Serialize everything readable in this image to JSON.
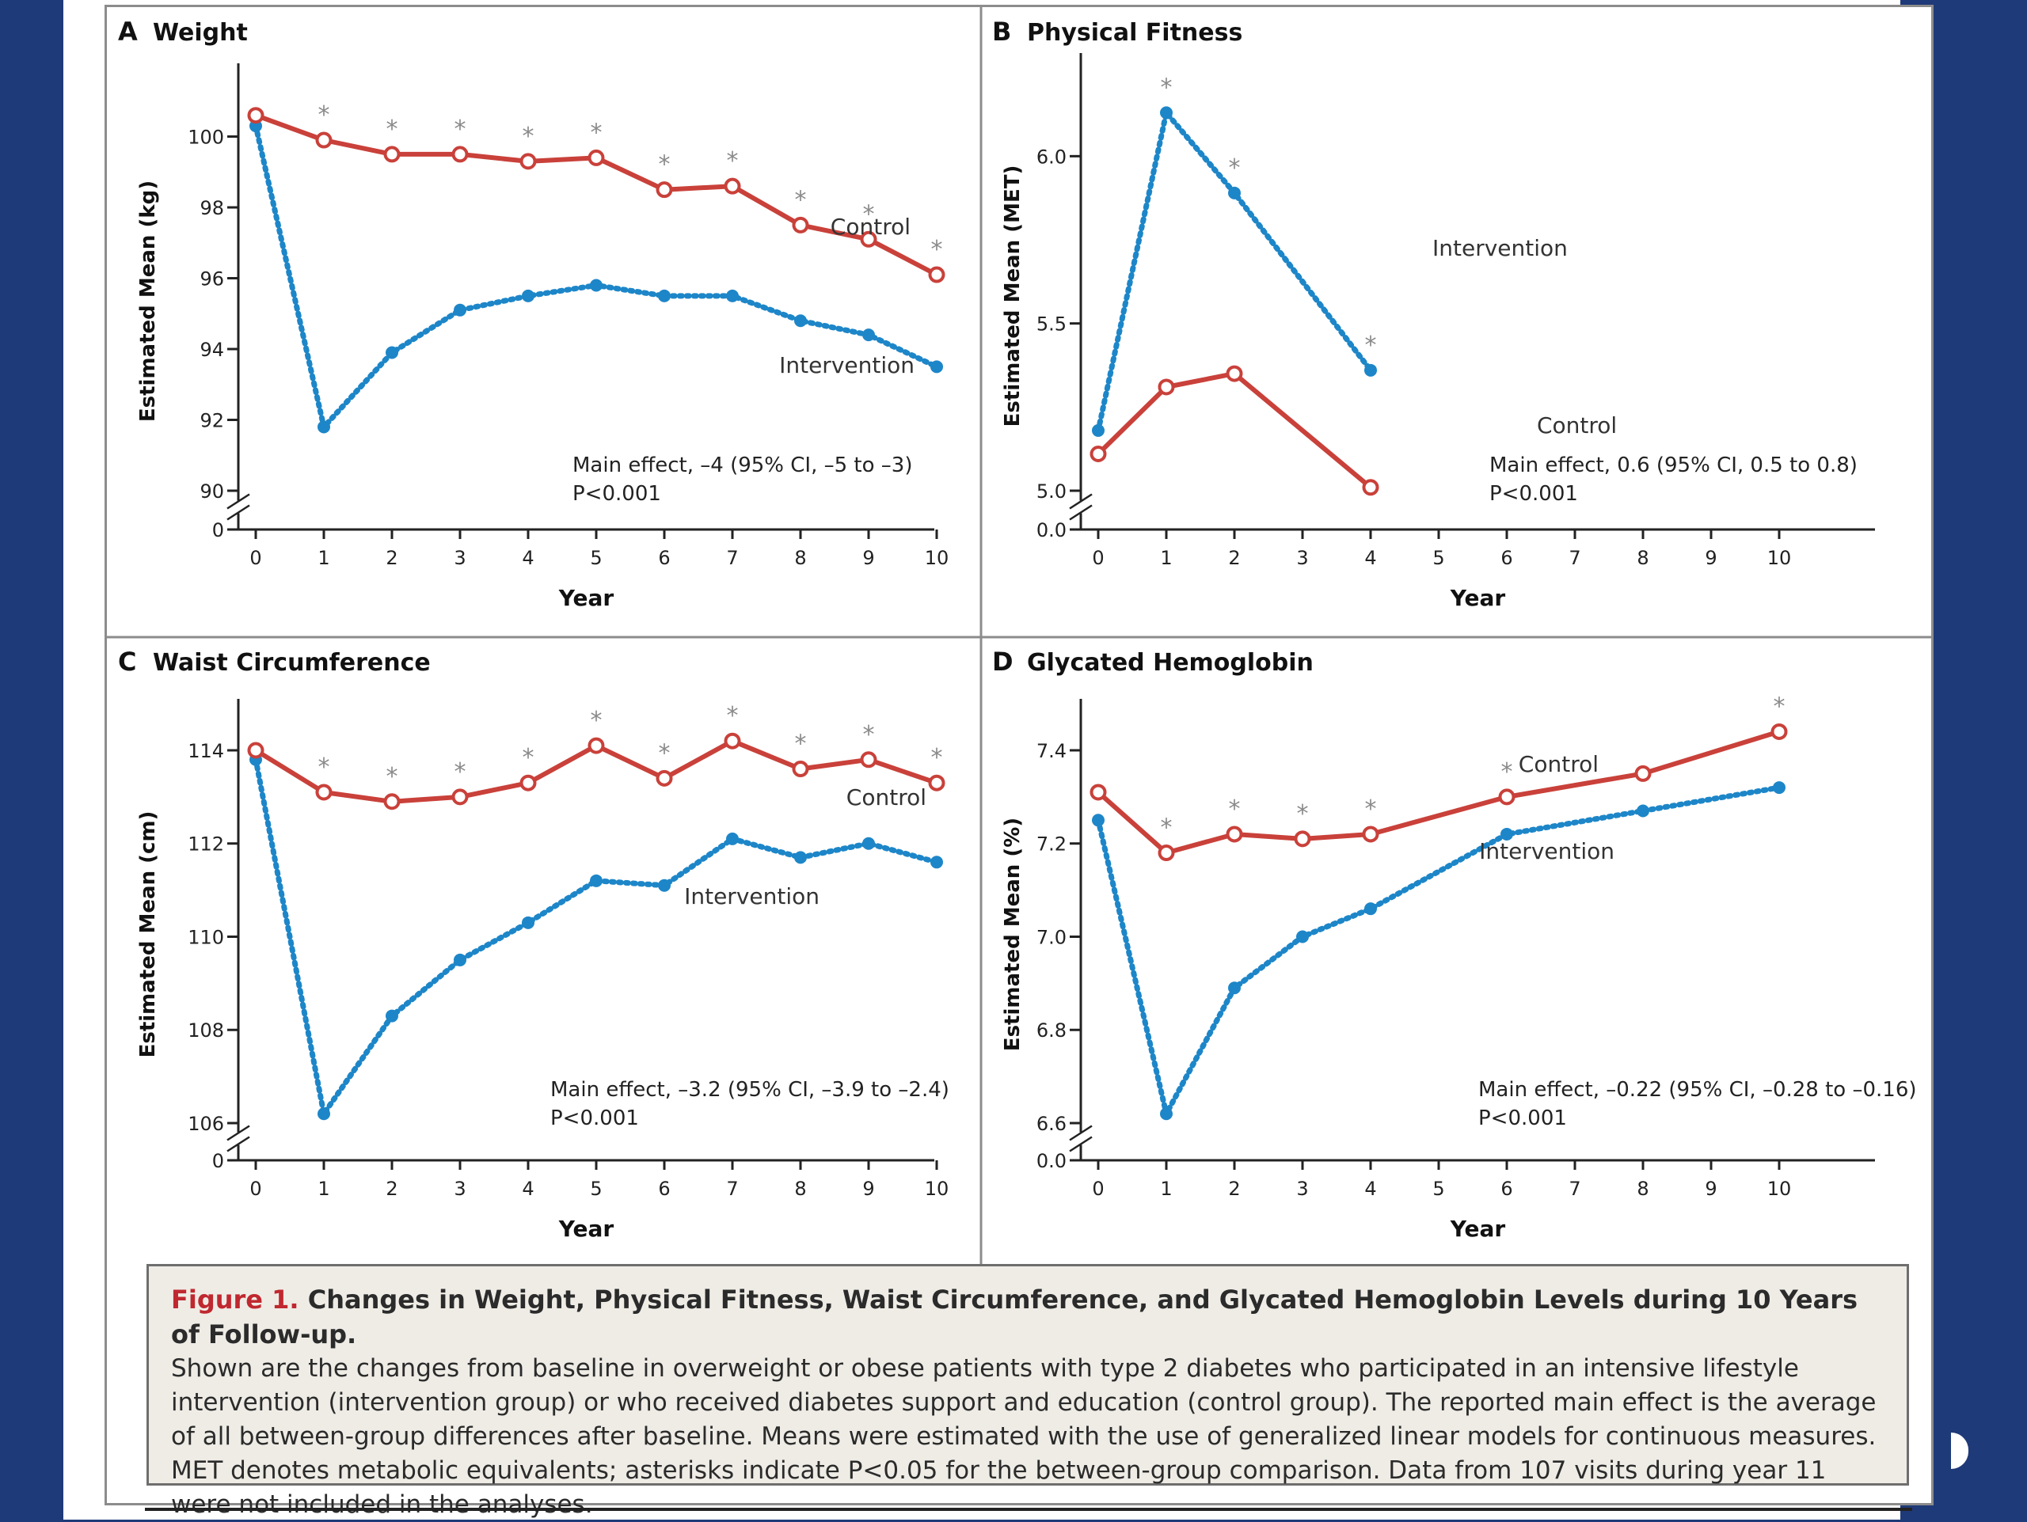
{
  "colors": {
    "control": "#c9413a",
    "intervention": "#1d86c8",
    "star": "#8a8a8a",
    "axis": "#222222"
  },
  "chart_data": [
    {
      "type": "line",
      "panel_letter": "A",
      "title": "Weight",
      "xlabel": "Year",
      "ylabel": "Estimated Mean (kg)",
      "x": [
        0,
        1,
        2,
        3,
        4,
        5,
        6,
        7,
        8,
        9,
        10
      ],
      "xticks": [
        "0",
        "1",
        "2",
        "3",
        "4",
        "5",
        "6",
        "7",
        "8",
        "9",
        "10"
      ],
      "yticks": [
        "90",
        "92",
        "94",
        "96",
        "98",
        "100"
      ],
      "ytick_values": [
        90,
        92,
        94,
        96,
        98,
        100
      ],
      "zero_label": "0",
      "ylim": [
        90,
        101.8
      ],
      "axis_break": true,
      "series": [
        {
          "name": "Control",
          "style": "solid",
          "x": [
            0,
            1,
            2,
            3,
            4,
            5,
            6,
            7,
            8,
            9,
            10
          ],
          "values": [
            100.6,
            99.9,
            99.5,
            99.5,
            99.3,
            99.4,
            98.5,
            98.6,
            97.5,
            97.1,
            96.1
          ]
        },
        {
          "name": "Intervention",
          "style": "dotted",
          "x": [
            0,
            1,
            2,
            3,
            4,
            5,
            6,
            7,
            8,
            9,
            10
          ],
          "values": [
            100.3,
            91.8,
            93.9,
            95.1,
            95.5,
            95.8,
            95.5,
            95.5,
            94.8,
            94.4,
            93.5
          ]
        }
      ],
      "significant_years": [
        1,
        2,
        3,
        4,
        5,
        6,
        7,
        8,
        9,
        10
      ],
      "annotation": {
        "lines": [
          "Main effect, –4 (95% CI, –5 to –3)",
          "P<0.001"
        ]
      }
    },
    {
      "type": "line",
      "panel_letter": "B",
      "title": "Physical Fitness",
      "xlabel": "Year",
      "ylabel": "Estimated Mean (MET)",
      "x": [
        0,
        1,
        2,
        3,
        4,
        5,
        6,
        7,
        8,
        9,
        10
      ],
      "xticks": [
        "0",
        "1",
        "2",
        "3",
        "4",
        "5",
        "6",
        "7",
        "8",
        "9",
        "10"
      ],
      "yticks": [
        "5.0",
        "5.5",
        "6.0"
      ],
      "ytick_values": [
        5.0,
        5.5,
        6.0
      ],
      "zero_label": "0.0",
      "ylim": [
        5.0,
        6.28
      ],
      "axis_break": true,
      "series": [
        {
          "name": "Control",
          "style": "solid",
          "x": [
            0,
            1,
            2,
            4
          ],
          "values": [
            5.11,
            5.31,
            5.35,
            5.01
          ]
        },
        {
          "name": "Intervention",
          "style": "dotted",
          "x": [
            0,
            1,
            2,
            4
          ],
          "values": [
            5.18,
            6.13,
            5.89,
            5.36
          ]
        }
      ],
      "significant_years": [
        1,
        2,
        4
      ],
      "annotation": {
        "lines": [
          "Main effect, 0.6 (95% CI, 0.5 to 0.8)",
          "P<0.001"
        ]
      }
    },
    {
      "type": "line",
      "panel_letter": "C",
      "title": "Waist Circumference",
      "xlabel": "Year",
      "ylabel": "Estimated Mean (cm)",
      "x": [
        0,
        1,
        2,
        3,
        4,
        5,
        6,
        7,
        8,
        9,
        10
      ],
      "xticks": [
        "0",
        "1",
        "2",
        "3",
        "4",
        "5",
        "6",
        "7",
        "8",
        "9",
        "10"
      ],
      "yticks": [
        "106",
        "108",
        "110",
        "112",
        "114"
      ],
      "ytick_values": [
        106,
        108,
        110,
        112,
        114
      ],
      "zero_label": "0",
      "ylim": [
        106,
        114.9
      ],
      "axis_break": true,
      "series": [
        {
          "name": "Control",
          "style": "solid",
          "x": [
            0,
            1,
            2,
            3,
            4,
            5,
            6,
            7,
            8,
            9,
            10
          ],
          "values": [
            114.0,
            113.1,
            112.9,
            113.0,
            113.3,
            114.1,
            113.4,
            114.2,
            113.6,
            113.8,
            113.3
          ]
        },
        {
          "name": "Intervention",
          "style": "dotted",
          "x": [
            0,
            1,
            2,
            3,
            4,
            5,
            6,
            7,
            8,
            9,
            10
          ],
          "values": [
            113.8,
            106.2,
            108.3,
            109.5,
            110.3,
            111.2,
            111.1,
            112.1,
            111.7,
            112.0,
            111.6
          ]
        }
      ],
      "significant_years": [
        1,
        2,
        3,
        4,
        5,
        6,
        7,
        8,
        9,
        10
      ],
      "annotation": {
        "lines": [
          "Main effect, –3.2 (95% CI, –3.9 to –2.4)",
          "P<0.001"
        ]
      }
    },
    {
      "type": "line",
      "panel_letter": "D",
      "title": "Glycated Hemoglobin",
      "xlabel": "Year",
      "ylabel": "Estimated Mean (%)",
      "x": [
        0,
        1,
        2,
        3,
        4,
        5,
        6,
        7,
        8,
        9,
        10
      ],
      "xticks": [
        "0",
        "1",
        "2",
        "3",
        "4",
        "5",
        "6",
        "7",
        "8",
        "9",
        "10"
      ],
      "yticks": [
        "6.6",
        "6.8",
        "7.0",
        "7.2",
        "7.4"
      ],
      "ytick_values": [
        6.6,
        6.8,
        7.0,
        7.2,
        7.4
      ],
      "zero_label": "0.0",
      "ylim": [
        6.6,
        7.49
      ],
      "axis_break": true,
      "series": [
        {
          "name": "Control",
          "style": "solid",
          "x": [
            0,
            1,
            2,
            3,
            4,
            6,
            8,
            10
          ],
          "values": [
            7.31,
            7.18,
            7.22,
            7.21,
            7.22,
            7.3,
            7.35,
            7.44
          ]
        },
        {
          "name": "Intervention",
          "style": "dotted",
          "x": [
            0,
            1,
            2,
            3,
            4,
            6,
            8,
            10
          ],
          "values": [
            7.25,
            6.62,
            6.89,
            7.0,
            7.06,
            7.22,
            7.27,
            7.32
          ]
        }
      ],
      "significant_years": [
        1,
        2,
        3,
        4,
        6,
        10
      ],
      "annotation": {
        "lines": [
          "Main effect, –0.22 (95% CI, –0.28 to –0.16)",
          "P<0.001"
        ]
      }
    }
  ],
  "caption": {
    "figure_label": "Figure 1.",
    "title": "Changes in Weight, Physical Fitness, Waist Circumference, and Glycated Hemoglobin Levels during 10 Years of Follow-up.",
    "body": "Shown are the changes from baseline in overweight or obese patients with type 2 diabetes who participated in an intensive lifestyle intervention (intervention group) or who received diabetes support and education (control group). The reported main effect is the average of all between-group differences after baseline. Means were estimated with the use of generalized linear models for continuous measures. MET denotes metabolic equivalents; asterisks indicate P<0.05 for the between-group comparison. Data from 107 visits during year 11 were not included in the analyses."
  }
}
